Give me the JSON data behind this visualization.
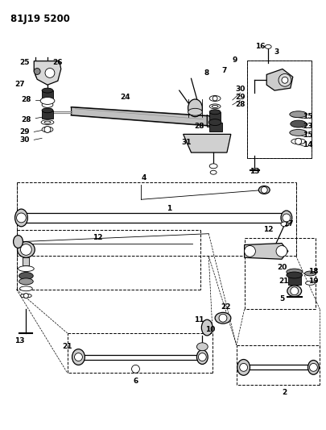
{
  "title": "81J19 5200",
  "bg_color": "#ffffff",
  "line_color": "#000000",
  "fig_width": 4.06,
  "fig_height": 5.33,
  "dpi": 100
}
